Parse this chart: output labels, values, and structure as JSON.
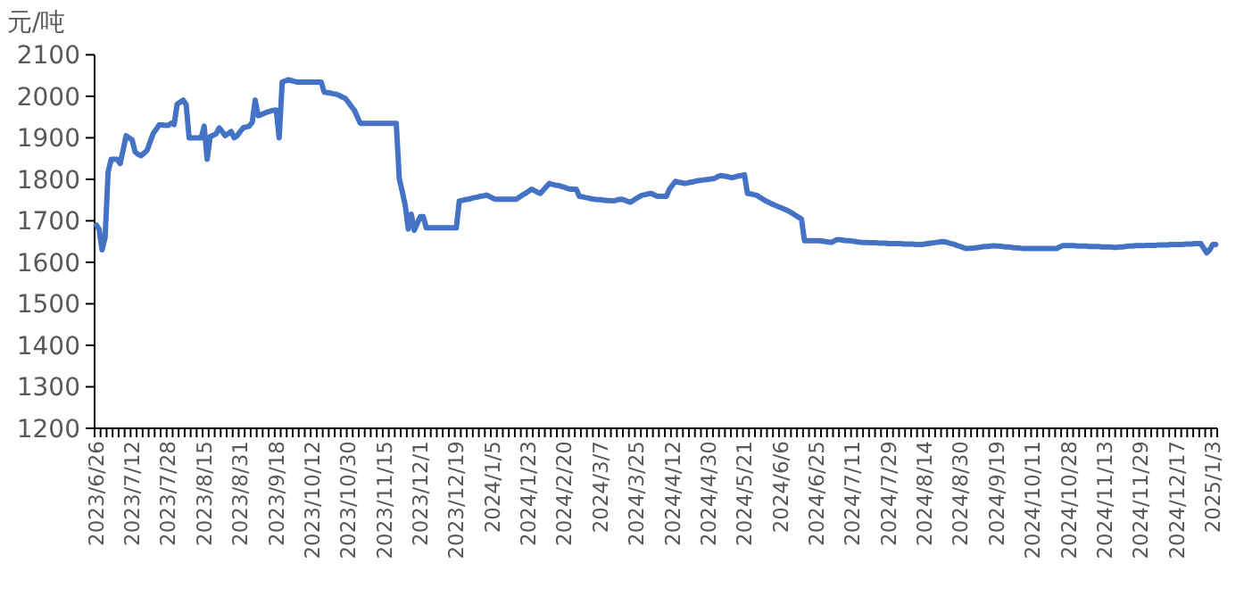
{
  "chart_data": {
    "type": "line",
    "ylabel": "元/吨",
    "ylim": [
      1200,
      2100
    ],
    "yticks": [
      1200,
      1300,
      1400,
      1500,
      1600,
      1700,
      1800,
      1900,
      2000,
      2100
    ],
    "categories": [
      "2023/6/26",
      null,
      null,
      null,
      null,
      null,
      null,
      null,
      null,
      null,
      null,
      null,
      "2023/7/12",
      null,
      null,
      null,
      null,
      null,
      null,
      null,
      null,
      null,
      null,
      null,
      "2023/7/28",
      null,
      null,
      null,
      null,
      null,
      null,
      null,
      null,
      null,
      null,
      null,
      "2023/8/15",
      null,
      null,
      null,
      null,
      null,
      null,
      null,
      null,
      null,
      null,
      null,
      "2023/8/31",
      null,
      null,
      null,
      null,
      null,
      null,
      null,
      null,
      null,
      null,
      null,
      "2023/9/18",
      null,
      null,
      null,
      null,
      null,
      null,
      null,
      null,
      null,
      null,
      null,
      "2023/10/12",
      null,
      null,
      null,
      null,
      null,
      null,
      null,
      null,
      null,
      null,
      null,
      "2023/10/30",
      null,
      null,
      null,
      null,
      null,
      null,
      null,
      null,
      null,
      null,
      null,
      "2023/11/15",
      null,
      null,
      null,
      null,
      null,
      null,
      null,
      null,
      null,
      null,
      null,
      "2023/12/1",
      null,
      null,
      null,
      null,
      null,
      null,
      null,
      null,
      null,
      null,
      null,
      "2023/12/19",
      null,
      null,
      null,
      null,
      null,
      null,
      null,
      null,
      null,
      null,
      null,
      "2024/1/5",
      null,
      null,
      null,
      null,
      null,
      null,
      null,
      null,
      null,
      null,
      null,
      "2024/1/23",
      null,
      null,
      null,
      null,
      null,
      null,
      null,
      null,
      null,
      null,
      null,
      "2024/2/20",
      null,
      null,
      null,
      null,
      null,
      null,
      null,
      null,
      null,
      null,
      null,
      "2024/3/7",
      null,
      null,
      null,
      null,
      null,
      null,
      null,
      null,
      null,
      null,
      null,
      "2024/3/25",
      null,
      null,
      null,
      null,
      null,
      null,
      null,
      null,
      null,
      null,
      null,
      "2024/4/12",
      null,
      null,
      null,
      null,
      null,
      null,
      null,
      null,
      null,
      null,
      null,
      "2024/4/30",
      null,
      null,
      null,
      null,
      null,
      null,
      null,
      null,
      null,
      null,
      null,
      "2024/5/21",
      null,
      null,
      null,
      null,
      null,
      null,
      null,
      null,
      null,
      null,
      null,
      "2024/6/6",
      null,
      null,
      null,
      null,
      null,
      null,
      null,
      null,
      null,
      null,
      null,
      "2024/6/25",
      null,
      null,
      null,
      null,
      null,
      null,
      null,
      null,
      null,
      null,
      null,
      "2024/7/11",
      null,
      null,
      null,
      null,
      null,
      null,
      null,
      null,
      null,
      null,
      null,
      "2024/7/29",
      null,
      null,
      null,
      null,
      null,
      null,
      null,
      null,
      null,
      null,
      null,
      "2024/8/14",
      null,
      null,
      null,
      null,
      null,
      null,
      null,
      null,
      null,
      null,
      null,
      "2024/8/30",
      null,
      null,
      null,
      null,
      null,
      null,
      null,
      null,
      null,
      null,
      null,
      "2024/9/19",
      null,
      null,
      null,
      null,
      null,
      null,
      null,
      null,
      null,
      null,
      null,
      "2024/10/11",
      null,
      null,
      null,
      null,
      null,
      null,
      null,
      null,
      null,
      null,
      null,
      "2024/10/28",
      null,
      null,
      null,
      null,
      null,
      null,
      null,
      null,
      null,
      null,
      null,
      "2024/11/13",
      null,
      null,
      null,
      null,
      null,
      null,
      null,
      null,
      null,
      null,
      null,
      "2024/11/29",
      null,
      null,
      null,
      null,
      null,
      null,
      null,
      null,
      null,
      null,
      null,
      "2024/12/17",
      null,
      null,
      null,
      null,
      null,
      null,
      null,
      null,
      null,
      null,
      null,
      "2025/1/3",
      null
    ],
    "series": [
      {
        "color": "#4472c4",
        "values": [
          1690,
          1680,
          1630,
          1660,
          1817,
          1848,
          1848,
          1848,
          1838,
          1870,
          1905,
          1900,
          1895,
          1866,
          1860,
          1857,
          1863,
          1870,
          1890,
          1910,
          1920,
          1931,
          1931,
          1930,
          1930,
          1935,
          1932,
          1981,
          1986,
          1991,
          1980,
          1900,
          1900,
          1900,
          1900,
          1900,
          1928,
          1848,
          1903,
          1906,
          1910,
          1924,
          1915,
          1905,
          1910,
          1915,
          1900,
          1905,
          1915,
          1924,
          1926,
          1928,
          1937,
          1991,
          1953,
          1956,
          1959,
          1962,
          1964,
          1966,
          1967,
          1900,
          2034,
          2037,
          2040,
          2038,
          2036,
          2034,
          2034,
          2034,
          2034,
          2034,
          2034,
          2034,
          2034,
          2034,
          2010,
          2009,
          2008,
          2006,
          2005,
          2002,
          1998,
          1995,
          1986,
          1976,
          1967,
          1951,
          1935,
          1935,
          1935,
          1935,
          1935,
          1935,
          1935,
          1935,
          1935,
          1935,
          1935,
          1935,
          1935,
          1802,
          1770,
          1737,
          1680,
          1716,
          1677,
          1694,
          1710,
          1710,
          1683,
          1683,
          1683,
          1683,
          1683,
          1683,
          1683,
          1683,
          1683,
          1683,
          1683,
          1748,
          1749,
          1751,
          1752,
          1754,
          1756,
          1757,
          1759,
          1760,
          1762,
          1759,
          1755,
          1752,
          1752,
          1752,
          1752,
          1752,
          1752,
          1752,
          1752,
          1757,
          1762,
          1766,
          1771,
          1776,
          1773,
          1769,
          1766,
          1774,
          1782,
          1790,
          1788,
          1786,
          1785,
          1783,
          1781,
          1778,
          1776,
          1776,
          1776,
          1759,
          1758,
          1756,
          1755,
          1753,
          1752,
          1751,
          1751,
          1750,
          1749,
          1749,
          1748,
          1749,
          1751,
          1752,
          1750,
          1747,
          1745,
          1749,
          1754,
          1758,
          1762,
          1763,
          1765,
          1766,
          1762,
          1759,
          1759,
          1759,
          1759,
          1776,
          1786,
          1795,
          1793,
          1792,
          1790,
          1791,
          1793,
          1794,
          1796,
          1797,
          1798,
          1799,
          1800,
          1801,
          1802,
          1806,
          1809,
          1808,
          1807,
          1805,
          1804,
          1806,
          1808,
          1809,
          1811,
          1766,
          1765,
          1763,
          1762,
          1757,
          1753,
          1748,
          1745,
          1741,
          1738,
          1735,
          1732,
          1729,
          1726,
          1722,
          1718,
          1713,
          1709,
          1704,
          1652,
          1652,
          1652,
          1652,
          1652,
          1652,
          1651,
          1650,
          1649,
          1648,
          1652,
          1655,
          1654,
          1653,
          1652,
          1652,
          1651,
          1650,
          1649,
          1648,
          1648,
          1648,
          1647,
          1647,
          1647,
          1646,
          1646,
          1646,
          1645,
          1645,
          1645,
          1645,
          1645,
          1644,
          1644,
          1644,
          1644,
          1643,
          1643,
          1643,
          1644,
          1645,
          1646,
          1647,
          1648,
          1649,
          1650,
          1649,
          1647,
          1645,
          1643,
          1640,
          1638,
          1635,
          1633,
          1634,
          1634,
          1635,
          1636,
          1637,
          1638,
          1638,
          1639,
          1640,
          1639,
          1639,
          1638,
          1637,
          1637,
          1636,
          1635,
          1635,
          1634,
          1633,
          1633,
          1633,
          1633,
          1633,
          1633,
          1633,
          1633,
          1633,
          1633,
          1633,
          1633,
          1637,
          1640,
          1640,
          1640,
          1640,
          1640,
          1639,
          1639,
          1639,
          1639,
          1638,
          1638,
          1638,
          1638,
          1637,
          1637,
          1637,
          1637,
          1636,
          1636,
          1637,
          1637,
          1638,
          1639,
          1639,
          1640,
          1640,
          1640,
          1640,
          1641,
          1641,
          1641,
          1641,
          1642,
          1642,
          1642,
          1642,
          1643,
          1643,
          1643,
          1643,
          1643,
          1644,
          1644,
          1644,
          1645,
          1645,
          1645,
          1634,
          1623,
          1630,
          1643,
          1643
        ]
      }
    ]
  }
}
